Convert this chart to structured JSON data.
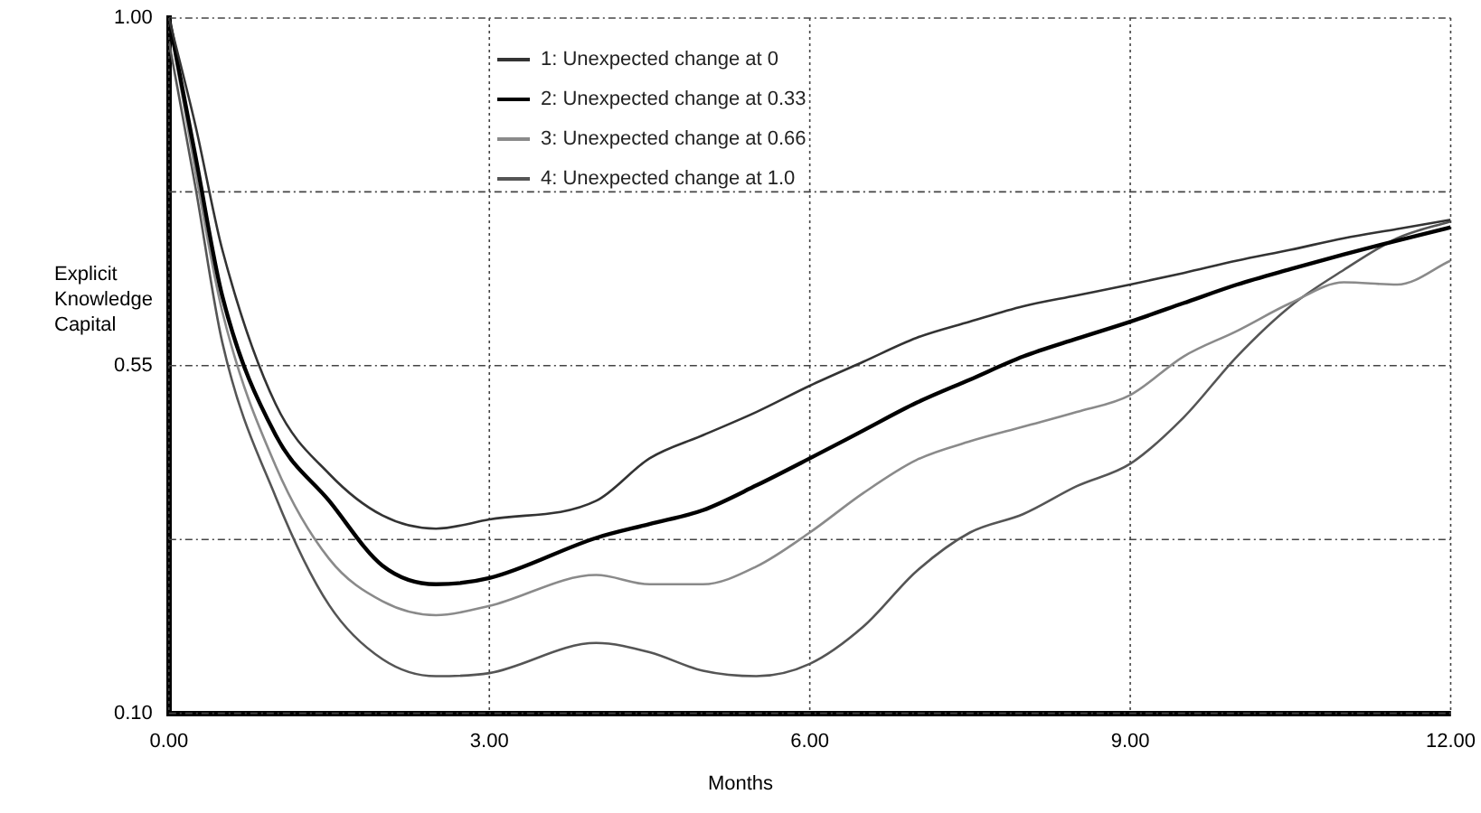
{
  "chart_data": {
    "type": "line",
    "xlabel": "Months",
    "ylabel": "Explicit Knowledge Capital",
    "xlim": [
      0,
      12
    ],
    "ylim": [
      0.1,
      1.0
    ],
    "xticks": [
      {
        "value": 0,
        "label": "0.00"
      },
      {
        "value": 3,
        "label": "3.00"
      },
      {
        "value": 6,
        "label": "6.00"
      },
      {
        "value": 9,
        "label": "9.00"
      },
      {
        "value": 12,
        "label": "12.00"
      }
    ],
    "yticks": [
      {
        "value": 0.1,
        "label": "0.10"
      },
      {
        "value": 0.325,
        "label": null
      },
      {
        "value": 0.55,
        "label": "0.55"
      },
      {
        "value": 0.775,
        "label": null
      },
      {
        "value": 1.0,
        "label": "1.00"
      }
    ],
    "x": [
      0,
      0.25,
      0.5,
      1,
      1.5,
      2,
      2.5,
      3,
      4,
      4.5,
      5,
      5.5,
      6,
      6.5,
      7,
      7.5,
      8,
      8.5,
      9,
      9.5,
      10,
      10.5,
      11,
      11.5,
      12
    ],
    "grid": true,
    "legend": "top",
    "marker": "none",
    "line_style": "solid",
    "series": [
      {
        "name": "1: Unexpected change at 0",
        "color": "#333333",
        "values": [
          1.0,
          0.86,
          0.7,
          0.5,
          0.41,
          0.356,
          0.339,
          0.351,
          0.375,
          0.43,
          0.46,
          0.49,
          0.524,
          0.555,
          0.586,
          0.607,
          0.627,
          0.641,
          0.655,
          0.67,
          0.686,
          0.7,
          0.715,
          0.727,
          0.739
        ]
      },
      {
        "name": "2: Unexpected change at 0.33",
        "color": "#000000",
        "values": [
          1.0,
          0.82,
          0.64,
          0.46,
          0.375,
          0.291,
          0.267,
          0.275,
          0.327,
          0.345,
          0.363,
          0.395,
          0.43,
          0.466,
          0.502,
          0.532,
          0.562,
          0.585,
          0.607,
          0.631,
          0.655,
          0.675,
          0.694,
          0.712,
          0.729
        ]
      },
      {
        "name": "3: Unexpected change at 0.66",
        "color": "#8a8a8a",
        "values": [
          1.0,
          0.8,
          0.62,
          0.42,
          0.3,
          0.245,
          0.227,
          0.239,
          0.279,
          0.267,
          0.267,
          0.29,
          0.334,
          0.385,
          0.428,
          0.452,
          0.471,
          0.49,
          0.512,
          0.562,
          0.595,
          0.631,
          0.658,
          0.655,
          0.686
        ]
      },
      {
        "name": "4: Unexpected change at 1.0",
        "color": "#555555",
        "values": [
          0.97,
          0.78,
          0.58,
          0.38,
          0.24,
          0.17,
          0.148,
          0.152,
          0.191,
          0.179,
          0.155,
          0.148,
          0.164,
          0.212,
          0.284,
          0.334,
          0.358,
          0.394,
          0.423,
          0.483,
          0.562,
          0.627,
          0.674,
          0.715,
          0.737
        ]
      }
    ]
  }
}
